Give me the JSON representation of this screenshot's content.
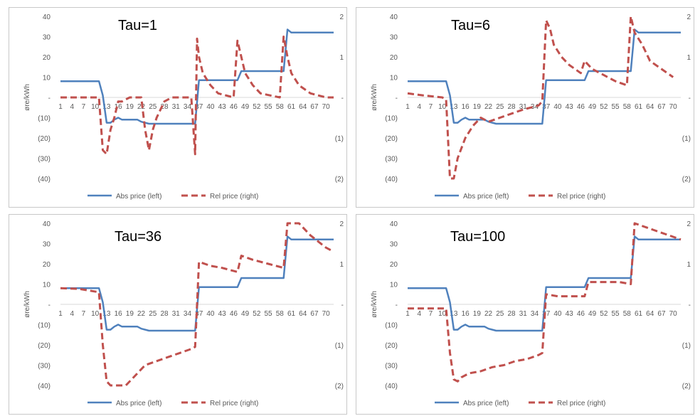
{
  "colors": {
    "abs": "#4F81BD",
    "rel": "#C0504D",
    "axis": "#d9d9d9",
    "text": "#595959"
  },
  "chart_data": [
    {
      "type": "line",
      "title": "Tau=1",
      "ylabel": "øre/kWh",
      "ylim": [
        -40,
        40
      ],
      "y2lim": [
        -2,
        2
      ],
      "y_ticks": [
        "40",
        "30",
        "20",
        "10",
        "-",
        "(10)",
        "(20)",
        "(30)",
        "(40)"
      ],
      "y2_ticks": [
        "2",
        "1",
        "-",
        "(1)",
        "(2)"
      ],
      "x_ticks": [
        "1",
        "4",
        "7",
        "10",
        "13",
        "16",
        "19",
        "22",
        "25",
        "28",
        "31",
        "34",
        "37",
        "40",
        "43",
        "46",
        "49",
        "52",
        "55",
        "58",
        "61",
        "64",
        "67",
        "70"
      ],
      "legend": "bottom",
      "series": [
        {
          "name": "Abs price (left)",
          "axis": "left",
          "style": "solid",
          "points": [
            [
              1,
              8
            ],
            [
              11,
              8
            ],
            [
              12,
              1
            ],
            [
              13,
              -12.5
            ],
            [
              14,
              -12.5
            ],
            [
              15,
              -11
            ],
            [
              16,
              -10
            ],
            [
              17,
              -11
            ],
            [
              20,
              -11
            ],
            [
              21,
              -11
            ],
            [
              22,
              -12
            ],
            [
              24,
              -13
            ],
            [
              36,
              -13
            ],
            [
              37,
              8.5
            ],
            [
              47,
              8.5
            ],
            [
              48,
              13
            ],
            [
              59,
              13
            ],
            [
              60,
              33.5
            ],
            [
              61,
              32
            ],
            [
              72,
              32
            ]
          ]
        },
        {
          "name": "Rel price (right)",
          "axis": "right",
          "style": "dashed",
          "points": [
            [
              1,
              0
            ],
            [
              11,
              0
            ],
            [
              12,
              -1.3
            ],
            [
              13,
              -1.4
            ],
            [
              14,
              -0.8
            ],
            [
              15,
              -0.5
            ],
            [
              16,
              -0.1
            ],
            [
              17,
              -0.1
            ],
            [
              18,
              -0.05
            ],
            [
              19,
              0
            ],
            [
              22,
              0
            ],
            [
              23,
              -0.8
            ],
            [
              24,
              -1.3
            ],
            [
              25,
              -0.8
            ],
            [
              26,
              -0.5
            ],
            [
              27,
              -0.3
            ],
            [
              28,
              -0.1
            ],
            [
              30,
              0
            ],
            [
              35,
              0
            ],
            [
              36,
              -1.4
            ],
            [
              36.5,
              1.45
            ],
            [
              37,
              1
            ],
            [
              38,
              0.6
            ],
            [
              40,
              0.3
            ],
            [
              42,
              0.1
            ],
            [
              46,
              0
            ],
            [
              47,
              1.4
            ],
            [
              48,
              1.0
            ],
            [
              49,
              0.6
            ],
            [
              51,
              0.3
            ],
            [
              53,
              0.1
            ],
            [
              58,
              0
            ],
            [
              59,
              1.5
            ],
            [
              60,
              1.0
            ],
            [
              61,
              0.6
            ],
            [
              63,
              0.3
            ],
            [
              66,
              0.1
            ],
            [
              70,
              0
            ],
            [
              72,
              0
            ]
          ]
        }
      ]
    },
    {
      "type": "line",
      "title": "Tau=6",
      "ylabel": "øre/kWh",
      "ylim": [
        -40,
        40
      ],
      "y2lim": [
        -2,
        2
      ],
      "y_ticks": [
        "40",
        "30",
        "20",
        "10",
        "-",
        "(10)",
        "(20)",
        "(30)",
        "(40)"
      ],
      "y2_ticks": [
        "2",
        "1",
        "-",
        "(1)",
        "(2)"
      ],
      "x_ticks": [
        "1",
        "4",
        "7",
        "10",
        "13",
        "16",
        "19",
        "22",
        "25",
        "28",
        "31",
        "34",
        "37",
        "40",
        "43",
        "46",
        "49",
        "52",
        "55",
        "58",
        "61",
        "64",
        "67",
        "70"
      ],
      "legend": "bottom",
      "series": [
        {
          "name": "Abs price (left)",
          "axis": "left",
          "style": "solid",
          "points": [
            [
              1,
              8
            ],
            [
              11,
              8
            ],
            [
              12,
              1
            ],
            [
              13,
              -12.5
            ],
            [
              14,
              -12.5
            ],
            [
              15,
              -11
            ],
            [
              16,
              -10
            ],
            [
              17,
              -11
            ],
            [
              20,
              -11
            ],
            [
              21,
              -11
            ],
            [
              22,
              -12
            ],
            [
              24,
              -13
            ],
            [
              36,
              -13
            ],
            [
              37,
              8.5
            ],
            [
              47,
              8.5
            ],
            [
              48,
              13
            ],
            [
              59,
              13
            ],
            [
              60,
              33.5
            ],
            [
              61,
              32
            ],
            [
              72,
              32
            ]
          ]
        },
        {
          "name": "Rel price (right)",
          "axis": "right",
          "style": "dashed",
          "points": [
            [
              1,
              0.1
            ],
            [
              5,
              0.05
            ],
            [
              10,
              0
            ],
            [
              11,
              -0.05
            ],
            [
              12,
              -2.0
            ],
            [
              13,
              -2.0
            ],
            [
              14,
              -1.5
            ],
            [
              16,
              -1.0
            ],
            [
              18,
              -0.7
            ],
            [
              20,
              -0.5
            ],
            [
              22,
              -0.6
            ],
            [
              25,
              -0.5
            ],
            [
              28,
              -0.4
            ],
            [
              31,
              -0.3
            ],
            [
              35,
              -0.2
            ],
            [
              36,
              -0.1
            ],
            [
              37,
              1.9
            ],
            [
              38,
              1.7
            ],
            [
              39,
              1.3
            ],
            [
              41,
              1.0
            ],
            [
              43,
              0.8
            ],
            [
              46,
              0.6
            ],
            [
              47,
              0.9
            ],
            [
              49,
              0.7
            ],
            [
              52,
              0.55
            ],
            [
              55,
              0.4
            ],
            [
              58,
              0.3
            ],
            [
              59,
              2.0
            ],
            [
              60,
              1.6
            ],
            [
              62,
              1.3
            ],
            [
              64,
              0.9
            ],
            [
              67,
              0.7
            ],
            [
              70,
              0.5
            ]
          ]
        }
      ]
    },
    {
      "type": "line",
      "title": "Tau=36",
      "ylabel": "øre/kWh",
      "ylim": [
        -40,
        40
      ],
      "y2lim": [
        -2,
        2
      ],
      "y_ticks": [
        "40",
        "30",
        "20",
        "10",
        "-",
        "(10)",
        "(20)",
        "(30)",
        "(40)"
      ],
      "y2_ticks": [
        "2",
        "1",
        "-",
        "(1)",
        "(2)"
      ],
      "x_ticks": [
        "1",
        "4",
        "7",
        "10",
        "13",
        "16",
        "19",
        "22",
        "25",
        "28",
        "31",
        "34",
        "37",
        "40",
        "43",
        "46",
        "49",
        "52",
        "55",
        "58",
        "61",
        "64",
        "67",
        "70"
      ],
      "legend": "bottom",
      "series": [
        {
          "name": "Abs price (left)",
          "axis": "left",
          "style": "solid",
          "points": [
            [
              1,
              8
            ],
            [
              11,
              8
            ],
            [
              12,
              1
            ],
            [
              13,
              -12.5
            ],
            [
              14,
              -12.5
            ],
            [
              15,
              -11
            ],
            [
              16,
              -10
            ],
            [
              17,
              -11
            ],
            [
              20,
              -11
            ],
            [
              21,
              -11
            ],
            [
              22,
              -12
            ],
            [
              24,
              -13
            ],
            [
              36,
              -13
            ],
            [
              37,
              8.5
            ],
            [
              47,
              8.5
            ],
            [
              48,
              13
            ],
            [
              59,
              13
            ],
            [
              60,
              33.5
            ],
            [
              61,
              32
            ],
            [
              72,
              32
            ]
          ]
        },
        {
          "name": "Rel price (right)",
          "axis": "right",
          "style": "dashed",
          "points": [
            [
              1,
              0.4
            ],
            [
              6,
              0.38
            ],
            [
              11,
              0.3
            ],
            [
              12,
              -1.0
            ],
            [
              13,
              -1.9
            ],
            [
              14,
              -2.0
            ],
            [
              18,
              -2.0
            ],
            [
              20,
              -1.8
            ],
            [
              23,
              -1.5
            ],
            [
              26,
              -1.4
            ],
            [
              29,
              -1.3
            ],
            [
              32,
              -1.2
            ],
            [
              35,
              -1.1
            ],
            [
              36,
              -1.05
            ],
            [
              37,
              1.05
            ],
            [
              40,
              0.95
            ],
            [
              43,
              0.9
            ],
            [
              47,
              0.8
            ],
            [
              48,
              1.2
            ],
            [
              51,
              1.1
            ],
            [
              55,
              1.0
            ],
            [
              59,
              0.9
            ],
            [
              60,
              2.0
            ],
            [
              63,
              2.0
            ],
            [
              66,
              1.7
            ],
            [
              70,
              1.4
            ],
            [
              72,
              1.3
            ]
          ]
        }
      ]
    },
    {
      "type": "line",
      "title": "Tau=100",
      "ylabel": "øre/kWh",
      "ylim": [
        -40,
        40
      ],
      "y2lim": [
        -2,
        2
      ],
      "y_ticks": [
        "40",
        "30",
        "20",
        "10",
        "-",
        "(10)",
        "(20)",
        "(30)",
        "(40)"
      ],
      "y2_ticks": [
        "2",
        "1",
        "-",
        "(1)",
        "(2)"
      ],
      "x_ticks": [
        "1",
        "4",
        "7",
        "10",
        "13",
        "16",
        "19",
        "22",
        "25",
        "28",
        "31",
        "34",
        "37",
        "40",
        "43",
        "46",
        "49",
        "52",
        "55",
        "58",
        "61",
        "64",
        "67",
        "70"
      ],
      "legend": "bottom",
      "series": [
        {
          "name": "Abs price (left)",
          "axis": "left",
          "style": "solid",
          "points": [
            [
              1,
              8
            ],
            [
              11,
              8
            ],
            [
              12,
              1
            ],
            [
              13,
              -12.5
            ],
            [
              14,
              -12.5
            ],
            [
              15,
              -11
            ],
            [
              16,
              -10
            ],
            [
              17,
              -11
            ],
            [
              20,
              -11
            ],
            [
              21,
              -11
            ],
            [
              22,
              -12
            ],
            [
              24,
              -13
            ],
            [
              36,
              -13
            ],
            [
              37,
              8.5
            ],
            [
              47,
              8.5
            ],
            [
              48,
              13
            ],
            [
              59,
              13
            ],
            [
              60,
              33.5
            ],
            [
              61,
              32
            ],
            [
              72,
              32
            ]
          ]
        },
        {
          "name": "Rel price (right)",
          "axis": "right",
          "style": "dashed",
          "points": [
            [
              1,
              -0.1
            ],
            [
              11,
              -0.1
            ],
            [
              12,
              -1.2
            ],
            [
              13,
              -1.85
            ],
            [
              14,
              -1.9
            ],
            [
              15,
              -1.8
            ],
            [
              17,
              -1.7
            ],
            [
              20,
              -1.65
            ],
            [
              23,
              -1.55
            ],
            [
              26,
              -1.5
            ],
            [
              29,
              -1.4
            ],
            [
              32,
              -1.35
            ],
            [
              35,
              -1.25
            ],
            [
              36,
              -1.2
            ],
            [
              37,
              0.25
            ],
            [
              40,
              0.2
            ],
            [
              44,
              0.2
            ],
            [
              47,
              0.2
            ],
            [
              48,
              0.55
            ],
            [
              52,
              0.55
            ],
            [
              56,
              0.55
            ],
            [
              59,
              0.5
            ],
            [
              60,
              2.0
            ],
            [
              63,
              1.9
            ],
            [
              66,
              1.8
            ],
            [
              69,
              1.7
            ],
            [
              72,
              1.6
            ]
          ]
        }
      ]
    }
  ]
}
